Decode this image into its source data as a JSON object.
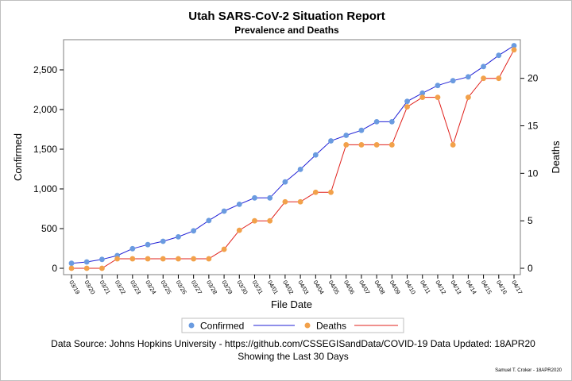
{
  "chart_data": {
    "type": "line",
    "title": "Utah SARS-CoV-2 Situation Report",
    "subtitle": "Prevalence and Deaths",
    "xlabel": "File Date",
    "ylabel_left": "Confirmed",
    "ylabel_right": "Deaths",
    "categories": [
      "03/19",
      "03/20",
      "03/21",
      "03/22",
      "03/23",
      "03/24",
      "03/25",
      "03/26",
      "03/27",
      "03/28",
      "03/29",
      "03/30",
      "03/31",
      "04/01",
      "04/02",
      "04/03",
      "04/04",
      "04/05",
      "04/06",
      "04/07",
      "04/08",
      "04/09",
      "04/10",
      "04/11",
      "04/12",
      "04/13",
      "04/14",
      "04/15",
      "04/16",
      "04/17"
    ],
    "ylim_left": [
      0,
      2800
    ],
    "ylim_right": [
      0,
      23.4
    ],
    "yticks_left": [
      "0",
      "500",
      "1,000",
      "1,500",
      "2,000",
      "2,500"
    ],
    "yticks_right": [
      "0",
      "5",
      "10",
      "15",
      "20"
    ],
    "grid": false,
    "legend_position": "bottom",
    "series": [
      {
        "name": "Confirmed",
        "axis": "left",
        "line_color": "#1f1fd6",
        "marker_color": "#6a9be0",
        "values": [
          63,
          80,
          112,
          160,
          247,
          298,
          340,
          396,
          472,
          602,
          720,
          806,
          887,
          887,
          1088,
          1246,
          1428,
          1605,
          1675,
          1738,
          1846,
          1846,
          2103,
          2207,
          2303,
          2363,
          2412,
          2542,
          2683,
          2805
        ]
      },
      {
        "name": "Deaths",
        "axis": "right",
        "line_color": "#e0201b",
        "marker_color": "#f2a14a",
        "values": [
          0,
          0,
          0,
          1,
          1,
          1,
          1,
          1,
          1,
          1,
          2,
          4,
          5,
          5,
          7,
          7,
          8,
          8,
          13,
          13,
          13,
          13,
          17,
          18,
          18,
          13,
          18,
          20,
          20,
          23
        ]
      }
    ],
    "footnote_source": "Data Source: Johns Hopkins University - https://github.com/CSSEGISandData/COVID-19 Data Updated: 18APR20",
    "footnote_window": "Showing the Last 30 Days",
    "credit": "Samuel T. Croker - 18APR2020"
  }
}
